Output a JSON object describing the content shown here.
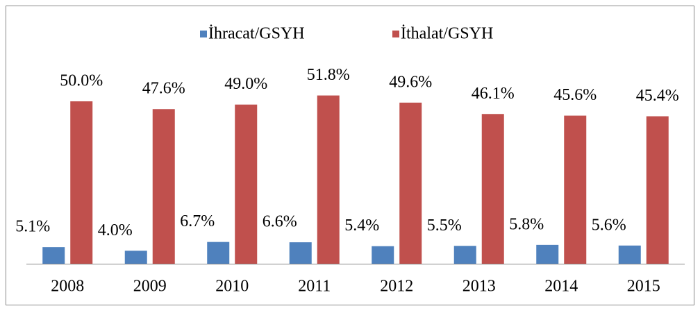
{
  "chart_data": {
    "type": "bar",
    "categories": [
      "2008",
      "2009",
      "2010",
      "2011",
      "2012",
      "2013",
      "2014",
      "2015"
    ],
    "series": [
      {
        "name": "İhracat/GSYH",
        "color": "#4f81bd",
        "values": [
          5.1,
          4.0,
          6.7,
          6.6,
          5.4,
          5.5,
          5.8,
          5.6
        ],
        "value_labels": [
          "5.1%",
          "4.0%",
          "6.7%",
          "6.6%",
          "5.4%",
          "5.5%",
          "5.8%",
          "5.6%"
        ]
      },
      {
        "name": "İthalat/GSYH",
        "color": "#c0504d",
        "values": [
          50.0,
          47.6,
          49.0,
          51.8,
          49.6,
          46.1,
          45.6,
          45.4
        ],
        "value_labels": [
          "50.0%",
          "47.6%",
          "49.0%",
          "51.8%",
          "49.6%",
          "46.1%",
          "45.6%",
          "45.4%"
        ]
      }
    ],
    "legend": "top"
  }
}
